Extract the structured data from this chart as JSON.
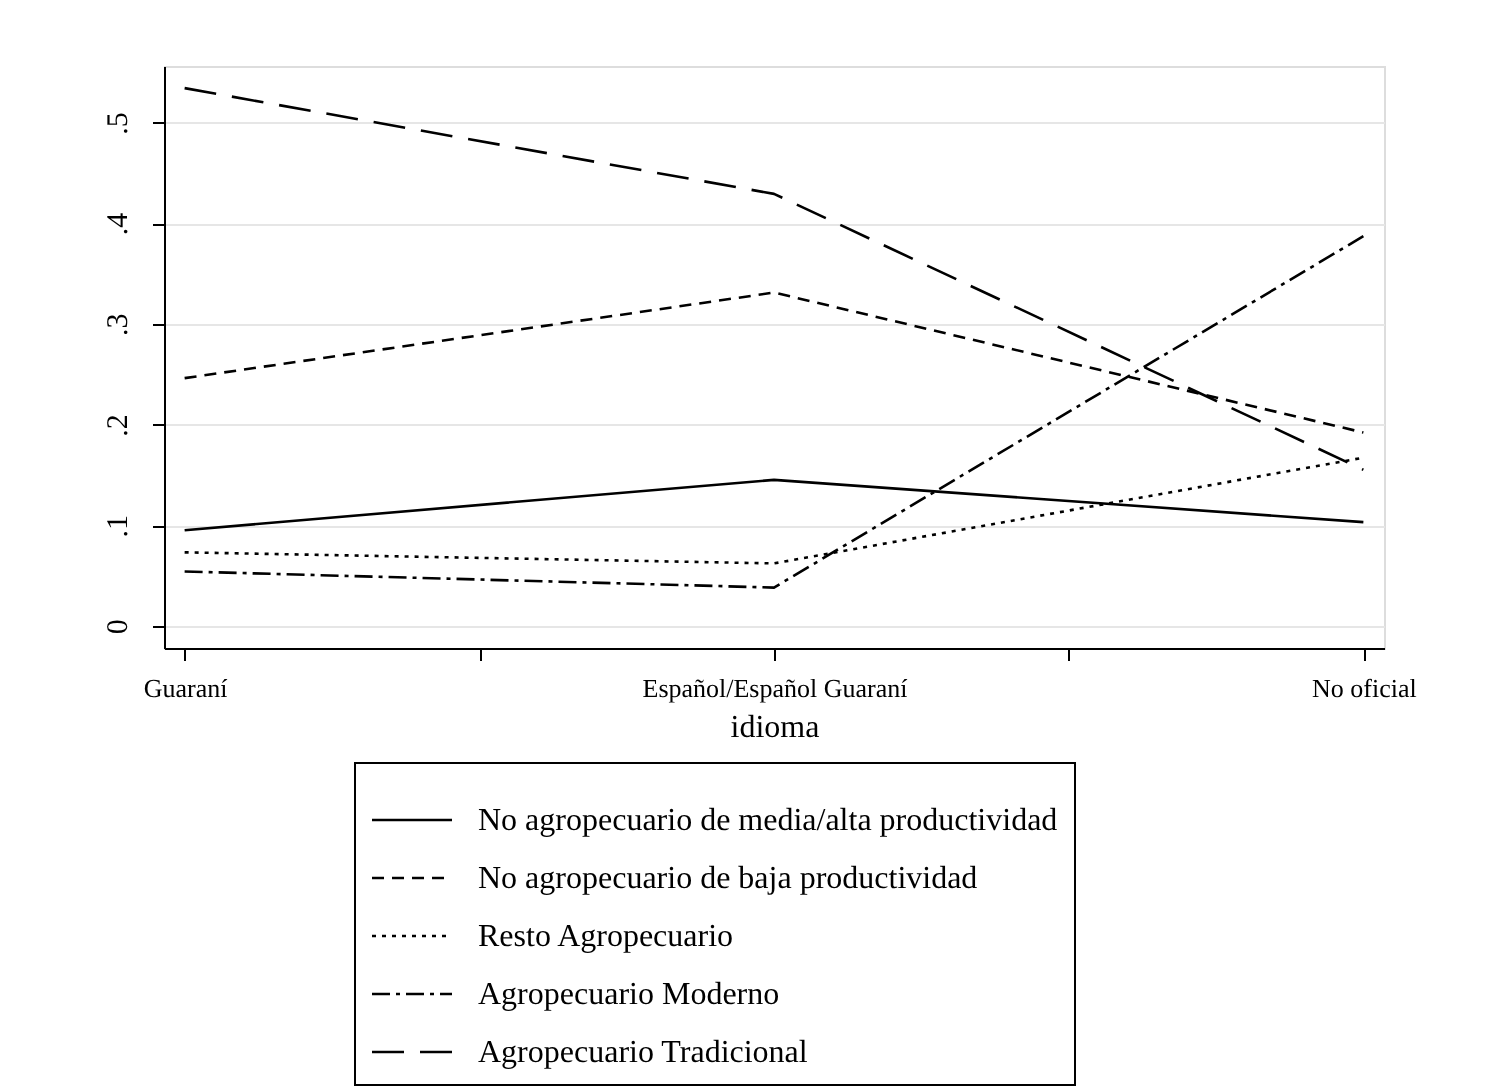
{
  "chart_data": {
    "type": "line",
    "xlabel": "idioma",
    "categories": [
      "Guaraní",
      "Español/Español Guaraní",
      "No oficial"
    ],
    "ylim": [
      -0.022,
      0.556
    ],
    "yticks": [
      {
        "value": 0,
        "label": "0"
      },
      {
        "value": 0.1,
        "label": ".1"
      },
      {
        "value": 0.2,
        "label": ".2"
      },
      {
        "value": 0.3,
        "label": ".3"
      },
      {
        "value": 0.4,
        "label": ".4"
      },
      {
        "value": 0.5,
        "label": ".5"
      }
    ],
    "grid": "y",
    "legend": "bottom",
    "marker": "none",
    "series": [
      {
        "name": "No agropecuario de media/alta productividad",
        "color": "#000000",
        "line_style": "solid",
        "values": [
          0.095,
          0.145,
          0.103
        ]
      },
      {
        "name": "No agropecuario de baja productividad",
        "color": "#000000",
        "line_style": "dashed",
        "values": [
          0.246,
          0.331,
          0.192
        ]
      },
      {
        "name": "Resto Agropecuario",
        "color": "#000000",
        "line_style": "dotted",
        "values": [
          0.073,
          0.062,
          0.167
        ]
      },
      {
        "name": "Agropecuario Moderno",
        "color": "#000000",
        "line_style": "dashdot",
        "values": [
          0.054,
          0.038,
          0.387
        ]
      },
      {
        "name": "Agropecuario Tradicional",
        "color": "#000000",
        "line_style": "longdash",
        "values": [
          0.534,
          0.429,
          0.155
        ]
      }
    ]
  }
}
